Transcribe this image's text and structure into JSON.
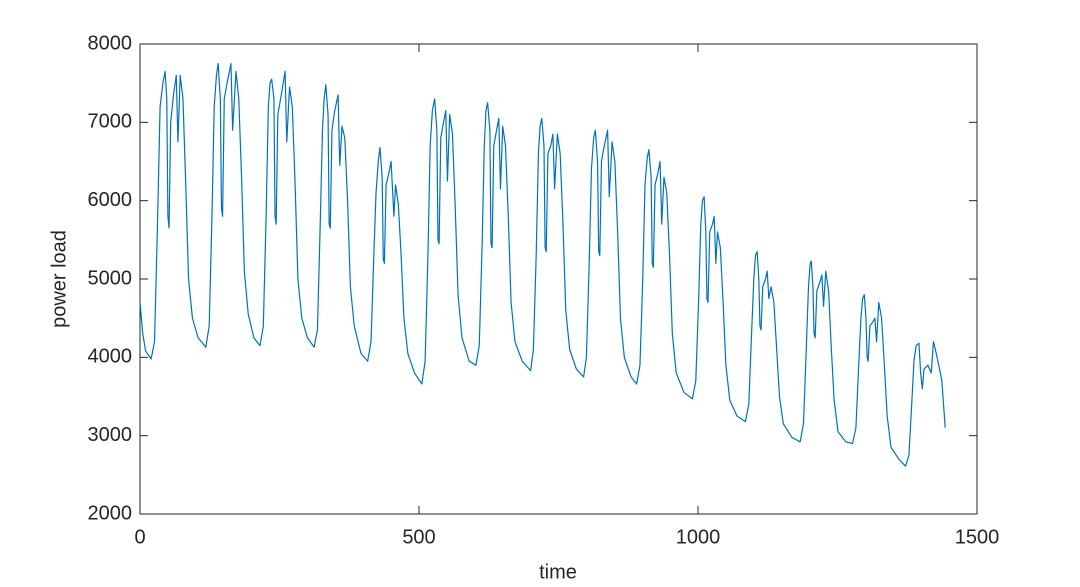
{
  "chart_data": {
    "type": "line",
    "xlabel": "time",
    "ylabel": "power load",
    "color": "#0072bd",
    "xlim": [
      0,
      1500
    ],
    "xticks": [
      0,
      500,
      1000,
      1500
    ],
    "ylim": [
      2000,
      8000
    ],
    "yticks": [
      2000,
      3000,
      4000,
      5000,
      6000,
      7000,
      8000
    ],
    "x": [
      0,
      5,
      10,
      20,
      26,
      31,
      36,
      41,
      45,
      48,
      50,
      52,
      55,
      60,
      65,
      68,
      72,
      77,
      82,
      87,
      94,
      104,
      118,
      124,
      129,
      133,
      137,
      140,
      144,
      146,
      148,
      151,
      156,
      163,
      166,
      172,
      177,
      182,
      187,
      194,
      204,
      215,
      221,
      226,
      230,
      233,
      236,
      240,
      242,
      244,
      247,
      252,
      260,
      263,
      268,
      273,
      278,
      283,
      290,
      300,
      312,
      318,
      323,
      327,
      330,
      333,
      337,
      339,
      341,
      344,
      349,
      355,
      358,
      362,
      367,
      372,
      377,
      384,
      396,
      408,
      414,
      419,
      423,
      427,
      430,
      434,
      436,
      438,
      441,
      446,
      450,
      455,
      458,
      463,
      468,
      473,
      480,
      492,
      505,
      511,
      516,
      520,
      524,
      528,
      532,
      534,
      536,
      539,
      544,
      548,
      551,
      555,
      560,
      565,
      570,
      577,
      590,
      602,
      608,
      613,
      617,
      620,
      623,
      627,
      629,
      631,
      634,
      639,
      643,
      646,
      650,
      655,
      660,
      665,
      672,
      685,
      700,
      705,
      710,
      714,
      717,
      720,
      724,
      726,
      728,
      731,
      736,
      740,
      743,
      748,
      753,
      758,
      763,
      770,
      782,
      795,
      800,
      805,
      809,
      813,
      816,
      820,
      822,
      824,
      827,
      832,
      838,
      841,
      846,
      851,
      856,
      861,
      868,
      880,
      890,
      896,
      901,
      905,
      909,
      912,
      916,
      918,
      920,
      923,
      928,
      932,
      935,
      939,
      944,
      949,
      954,
      961,
      975,
      990,
      996,
      1001,
      1005,
      1008,
      1011,
      1014,
      1016,
      1018,
      1021,
      1026,
      1029,
      1032,
      1035,
      1040,
      1045,
      1050,
      1057,
      1070,
      1085,
      1091,
      1096,
      1100,
      1103,
      1106,
      1109,
      1111,
      1113,
      1116,
      1121,
      1124,
      1127,
      1131,
      1136,
      1141,
      1146,
      1153,
      1168,
      1183,
      1189,
      1194,
      1198,
      1201,
      1203,
      1206,
      1208,
      1210,
      1213,
      1218,
      1222,
      1225,
      1229,
      1234,
      1239,
      1244,
      1251,
      1265,
      1277,
      1283,
      1288,
      1292,
      1295,
      1298,
      1301,
      1303,
      1305,
      1308,
      1313,
      1317,
      1320,
      1324,
      1329,
      1334,
      1339,
      1346,
      1360,
      1372,
      1378,
      1383,
      1387,
      1391,
      1396,
      1399,
      1402,
      1405,
      1412,
      1418,
      1422,
      1427,
      1433,
      1437,
      1443
    ],
    "values": [
      4700,
      4300,
      4080,
      3980,
      4200,
      5600,
      7200,
      7500,
      7650,
      7300,
      5800,
      5650,
      7000,
      7350,
      7600,
      6750,
      7600,
      7300,
      6200,
      5000,
      4500,
      4250,
      4130,
      4400,
      5800,
      7200,
      7600,
      7750,
      7300,
      5900,
      5800,
      7300,
      7500,
      7750,
      6900,
      7650,
      7300,
      6300,
      5100,
      4550,
      4250,
      4150,
      4400,
      5800,
      7200,
      7500,
      7550,
      7300,
      5800,
      5700,
      7100,
      7300,
      7650,
      6750,
      7450,
      7200,
      6200,
      5000,
      4500,
      4250,
      4130,
      4350,
      5700,
      6900,
      7300,
      7480,
      7100,
      5700,
      5650,
      6900,
      7150,
      7350,
      6450,
      6950,
      6800,
      6000,
      4900,
      4400,
      4050,
      3950,
      4200,
      5300,
      6100,
      6500,
      6680,
      6300,
      5250,
      5200,
      6200,
      6350,
      6500,
      5800,
      6200,
      5950,
      5300,
      4500,
      4050,
      3800,
      3660,
      3950,
      5300,
      6700,
      7150,
      7300,
      6900,
      5500,
      5450,
      6800,
      7000,
      7150,
      6250,
      7100,
      6850,
      5900,
      4800,
      4250,
      3950,
      3900,
      4150,
      5400,
      6700,
      7150,
      7250,
      6900,
      5450,
      5400,
      6700,
      6900,
      7050,
      6150,
      6950,
      6700,
      5800,
      4700,
      4200,
      3950,
      3830,
      4100,
      5300,
      6600,
      6950,
      7050,
      6700,
      5400,
      5350,
      6600,
      6700,
      6850,
      6150,
      6850,
      6600,
      5700,
      4600,
      4100,
      3850,
      3750,
      4000,
      5200,
      6400,
      6800,
      6900,
      6500,
      5350,
      5300,
      6500,
      6700,
      6900,
      6050,
      6750,
      6500,
      5600,
      4500,
      4000,
      3750,
      3660,
      3900,
      5000,
      6200,
      6550,
      6650,
      6300,
      5200,
      5150,
      6200,
      6350,
      6500,
      5700,
      6300,
      6100,
      5300,
      4300,
      3800,
      3550,
      3470,
      3700,
      4700,
      5700,
      6000,
      6050,
      5600,
      4750,
      4700,
      5600,
      5700,
      5800,
      5200,
      5600,
      5400,
      4700,
      3900,
      3450,
      3250,
      3180,
      3400,
      4300,
      5000,
      5300,
      5350,
      5000,
      4400,
      4350,
      4900,
      5000,
      5100,
      4750,
      4900,
      4700,
      4100,
      3500,
      3150,
      2980,
      2920,
      3150,
      4100,
      4900,
      5200,
      5230,
      4900,
      4300,
      4250,
      4850,
      4950,
      5050,
      4650,
      5100,
      4850,
      4100,
      3450,
      3050,
      2920,
      2900,
      3100,
      3900,
      4500,
      4750,
      4800,
      4500,
      4000,
      3950,
      4400,
      4450,
      4500,
      4200,
      4700,
      4500,
      3900,
      3250,
      2850,
      2700,
      2610,
      2750,
      3400,
      3950,
      4150,
      4180,
      3800,
      3600,
      3850,
      3900,
      3800,
      4200,
      4050,
      3850,
      3700,
      3100
    ]
  }
}
